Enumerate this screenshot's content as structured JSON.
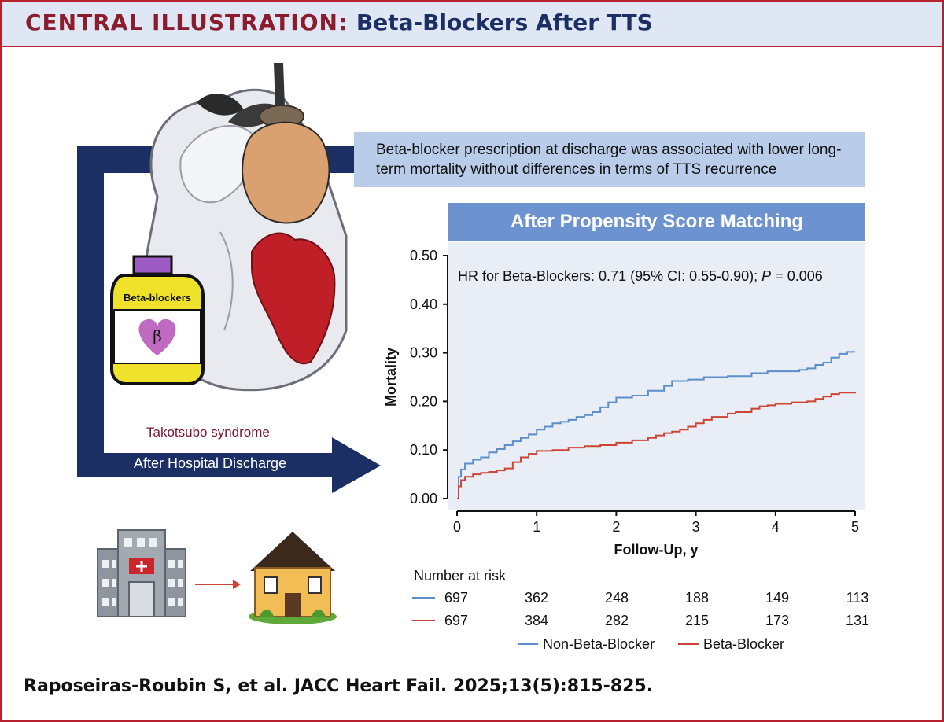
{
  "header": {
    "kicker": "CENTRAL ILLUSTRATION:",
    "title": "Beta-Blockers After TTS"
  },
  "callout": {
    "text": "Beta-blocker prescription at discharge was associated with lower long-term mortality without differences in terms of TTS recurrence"
  },
  "illustration": {
    "bottle_label": "Beta-blockers",
    "bottle_symbol": "β",
    "heart_label": "Takotsubo syndrome",
    "arrow_label": "After Hospital Discharge"
  },
  "colors": {
    "accent_red": "#b7202e",
    "navy": "#1c2f64",
    "series_non_bb": "#5b8fc9",
    "series_bb": "#cc4433",
    "plot_bg": "#e8edf6"
  },
  "chart_data": {
    "type": "line",
    "title": "After Propensity Score Matching",
    "annotation": "HR for Beta-Blockers: 0.71 (95% CI: 0.55-0.90); P = 0.006",
    "xlabel": "Follow-Up, y",
    "ylabel": "Mortality",
    "xlim": [
      0,
      5
    ],
    "ylim": [
      0,
      0.5
    ],
    "xticks": [
      "0",
      "1",
      "2",
      "3",
      "4",
      "5"
    ],
    "yticks": [
      "0.00",
      "0.10",
      "0.20",
      "0.30",
      "0.40",
      "0.50"
    ],
    "series": [
      {
        "name": "Non-Beta-Blocker",
        "color": "#5b8fc9",
        "x": [
          0,
          0.02,
          0.05,
          0.1,
          0.2,
          0.3,
          0.4,
          0.5,
          0.6,
          0.7,
          0.8,
          0.9,
          1.0,
          1.1,
          1.2,
          1.3,
          1.4,
          1.5,
          1.6,
          1.7,
          1.8,
          1.9,
          2.0,
          2.2,
          2.4,
          2.6,
          2.7,
          2.9,
          3.1,
          3.4,
          3.7,
          3.9,
          4.1,
          4.3,
          4.4,
          4.5,
          4.6,
          4.7,
          4.8,
          4.9,
          5.0
        ],
        "y": [
          0.0,
          0.045,
          0.06,
          0.072,
          0.08,
          0.085,
          0.095,
          0.102,
          0.11,
          0.118,
          0.125,
          0.132,
          0.142,
          0.148,
          0.155,
          0.158,
          0.162,
          0.168,
          0.172,
          0.178,
          0.188,
          0.198,
          0.208,
          0.212,
          0.222,
          0.232,
          0.242,
          0.245,
          0.25,
          0.252,
          0.258,
          0.262,
          0.262,
          0.265,
          0.268,
          0.275,
          0.28,
          0.29,
          0.298,
          0.302,
          0.302
        ]
      },
      {
        "name": "Beta-Blocker",
        "color": "#cc4433",
        "x": [
          0,
          0.02,
          0.05,
          0.1,
          0.2,
          0.3,
          0.4,
          0.5,
          0.6,
          0.7,
          0.8,
          0.9,
          1.0,
          1.2,
          1.4,
          1.6,
          1.8,
          2.0,
          2.2,
          2.4,
          2.5,
          2.6,
          2.7,
          2.8,
          2.9,
          3.0,
          3.1,
          3.2,
          3.4,
          3.5,
          3.7,
          3.8,
          3.9,
          4.0,
          4.2,
          4.4,
          4.5,
          4.6,
          4.7,
          4.8,
          5.0
        ],
        "y": [
          0.0,
          0.025,
          0.038,
          0.045,
          0.05,
          0.053,
          0.055,
          0.058,
          0.062,
          0.075,
          0.085,
          0.092,
          0.098,
          0.1,
          0.105,
          0.108,
          0.11,
          0.115,
          0.12,
          0.125,
          0.13,
          0.135,
          0.138,
          0.142,
          0.148,
          0.155,
          0.162,
          0.168,
          0.175,
          0.178,
          0.185,
          0.19,
          0.192,
          0.195,
          0.198,
          0.2,
          0.205,
          0.21,
          0.215,
          0.218,
          0.22
        ]
      }
    ],
    "number_at_risk": {
      "label": "Number at risk",
      "rows": [
        {
          "series": "Non-Beta-Blocker",
          "values": [
            "697",
            "362",
            "248",
            "188",
            "149",
            "113"
          ]
        },
        {
          "series": "Beta-Blocker",
          "values": [
            "697",
            "384",
            "282",
            "215",
            "173",
            "131"
          ]
        }
      ]
    },
    "legend": [
      "Non-Beta-Blocker",
      "Beta-Blocker"
    ],
    "legend_position": "bottom",
    "grid": false
  },
  "citation": "Raposeiras-Roubin S, et al. JACC Heart Fail. 2025;13(5):815-825."
}
